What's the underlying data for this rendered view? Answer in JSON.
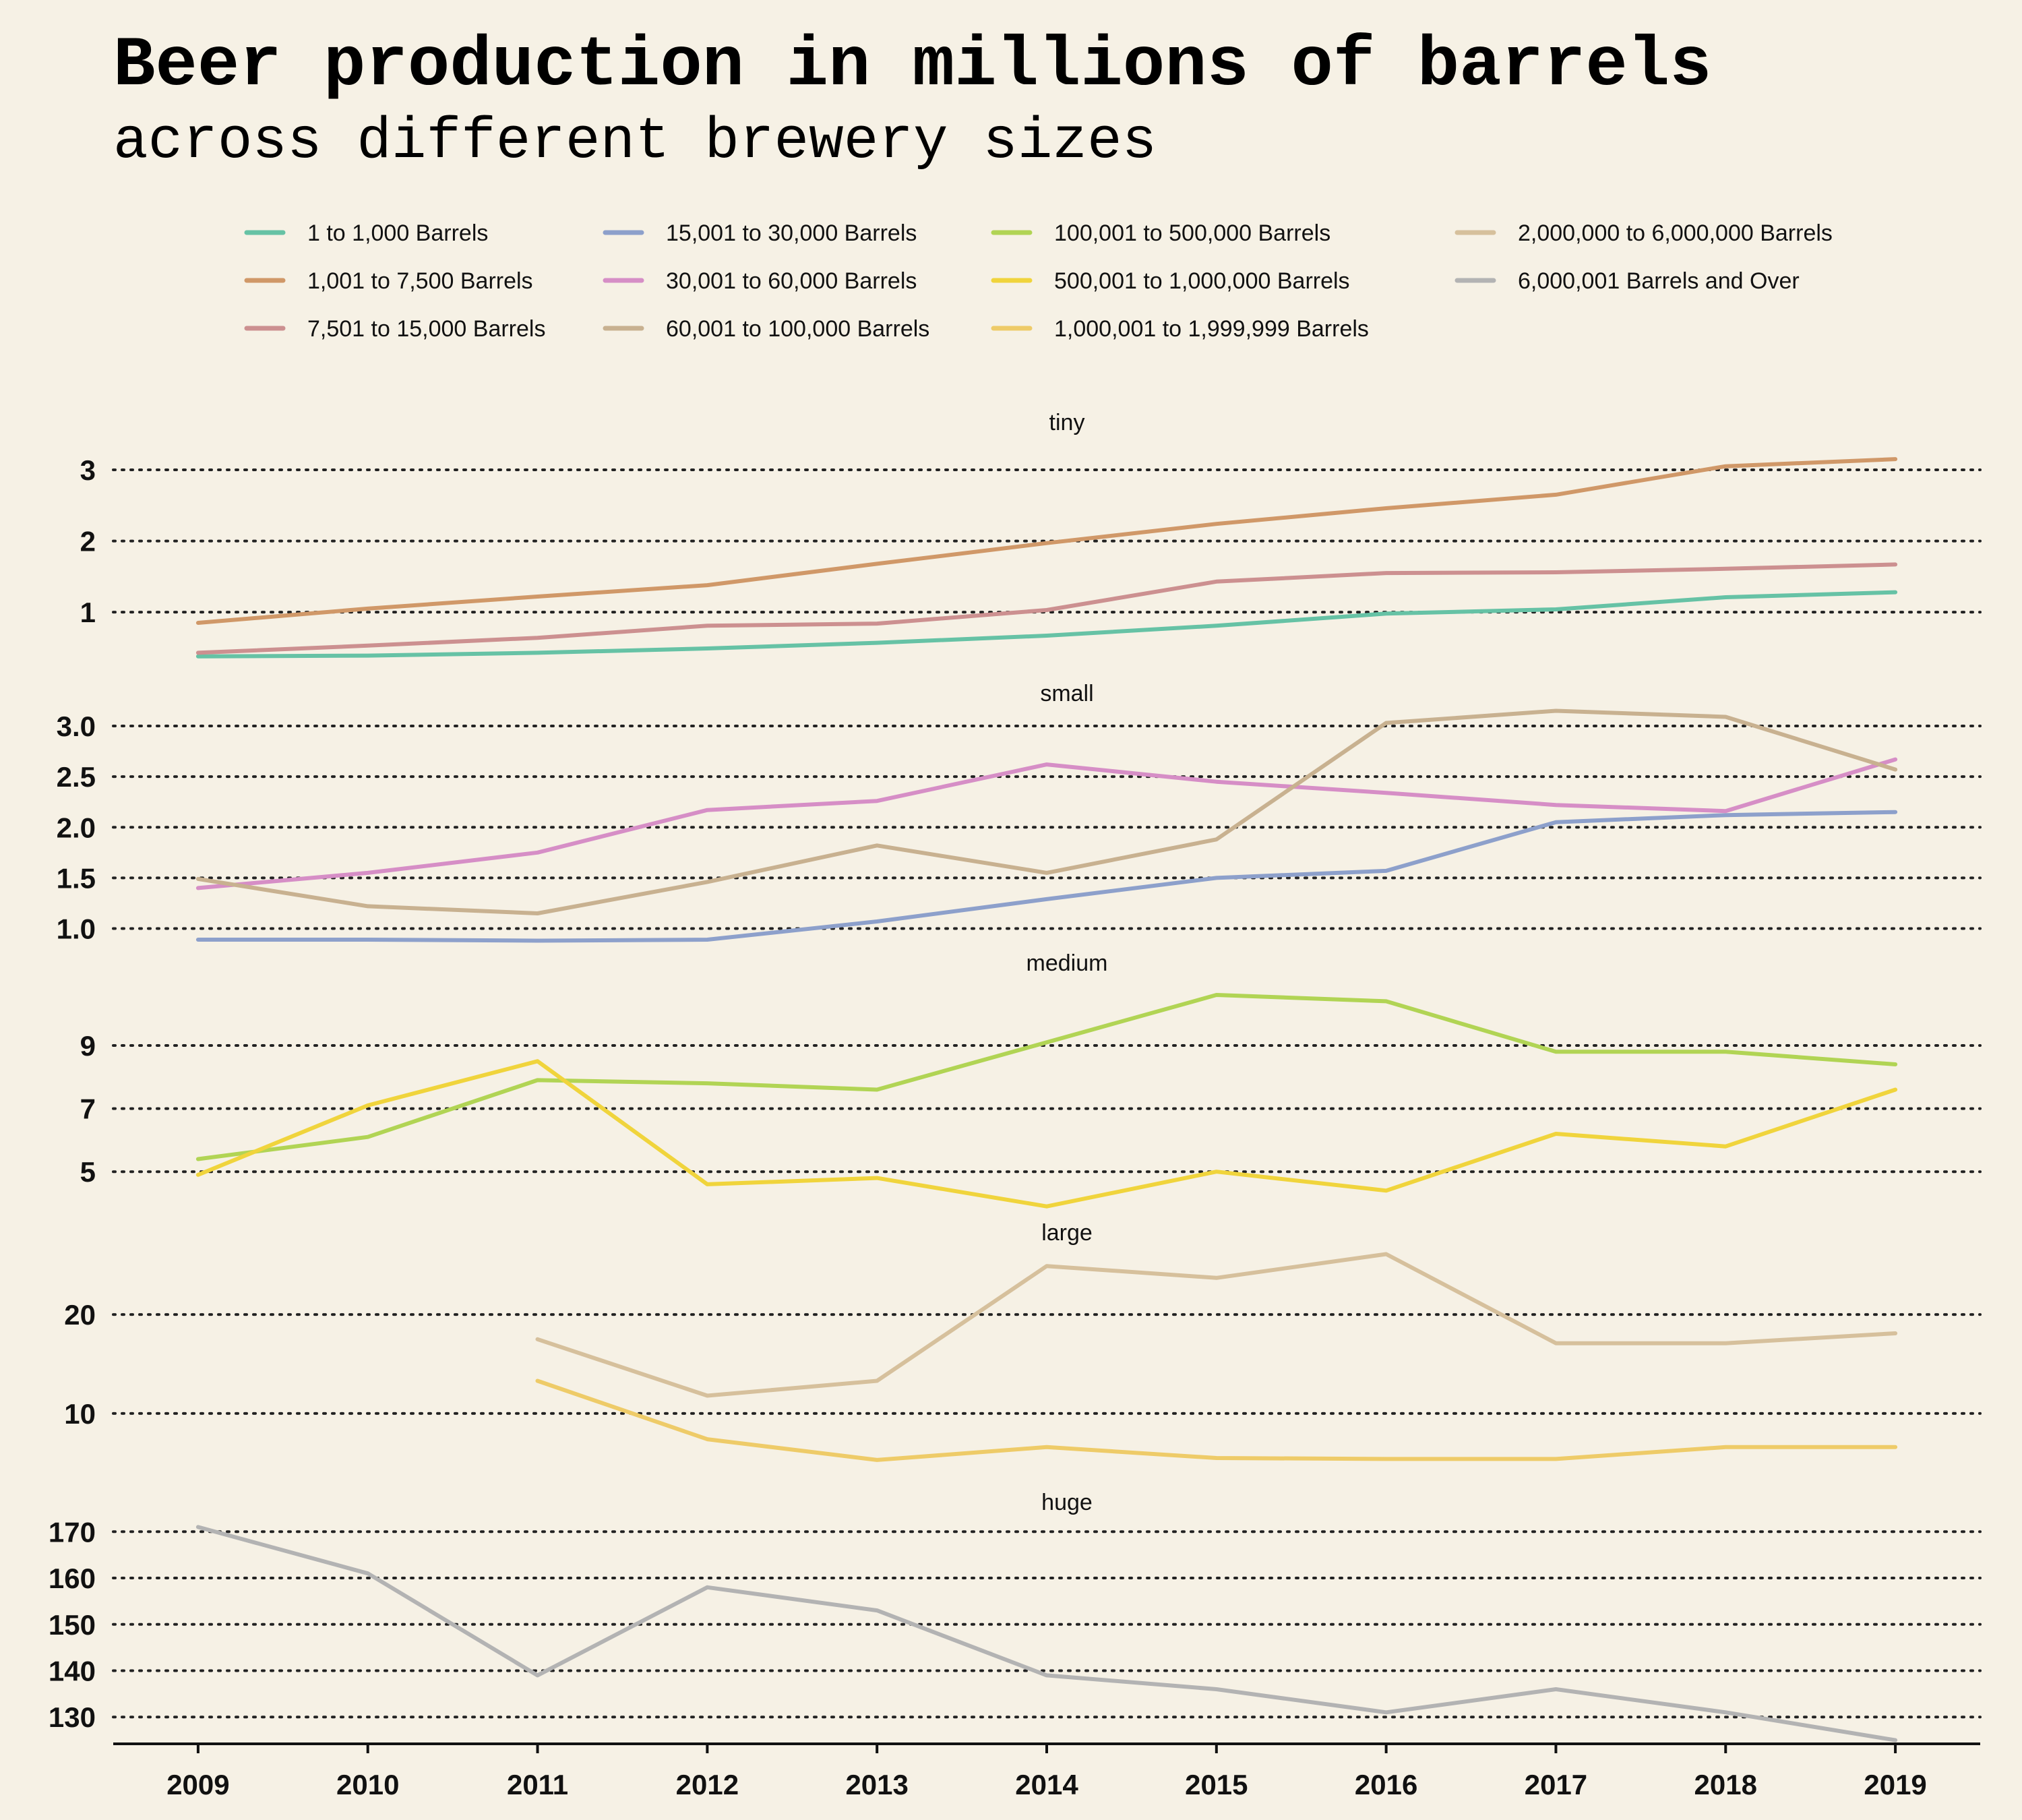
{
  "title": "Beer production in millions of barrels",
  "subtitle": "across different brewery sizes",
  "chart_data": {
    "type": "line",
    "x": [
      2009,
      2010,
      2011,
      2012,
      2013,
      2014,
      2015,
      2016,
      2017,
      2018,
      2019
    ],
    "xlim": [
      2008.5,
      2019.5
    ],
    "legend": {
      "position": "top",
      "entries": [
        {
          "label": "1 to 1,000 Barrels",
          "color": "#66c2a5"
        },
        {
          "label": "1,001 to 7,500 Barrels",
          "color": "#d09868"
        },
        {
          "label": "7,501 to 15,000 Barrels",
          "color": "#cc9090"
        },
        {
          "label": "15,001 to 30,000 Barrels",
          "color": "#8da0cb"
        },
        {
          "label": "30,001 to 60,000 Barrels",
          "color": "#d68ec6"
        },
        {
          "label": "60,001 to 100,000 Barrels",
          "color": "#c8b190"
        },
        {
          "label": "100,001 to 500,000 Barrels",
          "color": "#b1d454"
        },
        {
          "label": "500,001 to 1,000,000 Barrels",
          "color": "#f0d43c"
        },
        {
          "label": "1,000,001 to 1,999,999 Barrels",
          "color": "#eecb68"
        },
        {
          "label": "2,000,000 to 6,000,000 Barrels",
          "color": "#d6c09c"
        },
        {
          "label": "6,000,001 Barrels and Over",
          "color": "#b3b3b3"
        }
      ]
    },
    "panels": [
      {
        "title": "tiny",
        "ylim": [
          0.32,
          3.35
        ],
        "yticks": [
          1,
          2,
          3
        ],
        "ytick_labels": [
          "1",
          "2",
          "3"
        ],
        "series": [
          {
            "name": "1 to 1,000 Barrels",
            "color": "#66c2a5",
            "values": [
              0.38,
              0.39,
              0.43,
              0.49,
              0.57,
              0.67,
              0.81,
              0.98,
              1.04,
              1.21,
              1.28
            ]
          },
          {
            "name": "1,001 to 7,500 Barrels",
            "color": "#d09868",
            "values": [
              0.85,
              1.05,
              1.22,
              1.38,
              1.68,
              1.97,
              2.24,
              2.46,
              2.65,
              3.05,
              3.15
            ]
          },
          {
            "name": "7,501 to 15,000 Barrels",
            "color": "#cc9090",
            "values": [
              0.43,
              0.53,
              0.64,
              0.81,
              0.84,
              1.03,
              1.43,
              1.55,
              1.56,
              1.61,
              1.67
            ]
          }
        ]
      },
      {
        "title": "small",
        "ylim": [
          0.95,
          3.1
        ],
        "yticks": [
          1.0,
          1.5,
          2.0,
          2.5,
          3.0
        ],
        "ytick_labels": [
          "1.0",
          "1.5",
          "2.0",
          "2.5",
          "3.0"
        ],
        "series": [
          {
            "name": "15,001 to 30,000 Barrels",
            "color": "#8da0cb",
            "values": [
              0.89,
              0.89,
              0.88,
              0.89,
              1.07,
              1.29,
              1.5,
              1.57,
              2.05,
              2.12,
              2.15
            ]
          },
          {
            "name": "30,001 to 60,000 Barrels",
            "color": "#d68ec6",
            "values": [
              1.4,
              1.55,
              1.75,
              2.17,
              2.26,
              2.62,
              2.45,
              2.34,
              2.22,
              2.16,
              2.67
            ]
          },
          {
            "name": "60,001 to 100,000 Barrels",
            "color": "#c8b190",
            "values": [
              1.49,
              1.22,
              1.15,
              1.46,
              1.82,
              1.55,
              1.88,
              3.03,
              3.15,
              3.09,
              2.57
            ]
          }
        ]
      },
      {
        "title": "medium",
        "ylim": [
          4.0,
          10.9
        ],
        "yticks": [
          5,
          7,
          9
        ],
        "ytick_labels": [
          "5",
          "7",
          "9"
        ],
        "series": [
          {
            "name": "100,001 to 500,000 Barrels",
            "color": "#b1d454",
            "values": [
              5.4,
              6.1,
              7.9,
              7.8,
              7.6,
              9.1,
              10.6,
              10.4,
              8.8,
              8.8,
              8.4
            ]
          },
          {
            "name": "500,001 to 1,000,000 Barrels",
            "color": "#f0d43c",
            "values": [
              4.9,
              7.1,
              8.5,
              4.6,
              4.8,
              3.9,
              5.0,
              4.4,
              6.2,
              5.8,
              7.6
            ]
          }
        ]
      },
      {
        "title": "large",
        "ylim": [
          4.0,
          26.0
        ],
        "yticks": [
          10,
          20
        ],
        "ytick_labels": [
          "10",
          "20"
        ],
        "series": [
          {
            "name": "1,000,001 to 1,999,999 Barrels",
            "color": "#eecb68",
            "values": [
              null,
              null,
              13.3,
              7.4,
              5.3,
              6.6,
              5.5,
              5.4,
              5.4,
              6.6,
              6.6
            ]
          },
          {
            "name": "2,000,000 to 6,000,000 Barrels",
            "color": "#d6c09c",
            "values": [
              null,
              null,
              17.5,
              11.8,
              13.3,
              24.9,
              23.7,
              26.1,
              17.1,
              17.1,
              18.1
            ]
          }
        ]
      },
      {
        "title": "huge",
        "ylim": [
          124.5,
          171.5
        ],
        "yticks": [
          130,
          140,
          150,
          160,
          170
        ],
        "ytick_labels": [
          "130",
          "140",
          "150",
          "160",
          "170"
        ],
        "series": [
          {
            "name": "6,000,001 Barrels and Over",
            "color": "#b3b3b3",
            "values": [
              171,
              161,
              139,
              158,
              153,
              139,
              136,
              131,
              136,
              131,
              125
            ]
          }
        ]
      }
    ]
  }
}
